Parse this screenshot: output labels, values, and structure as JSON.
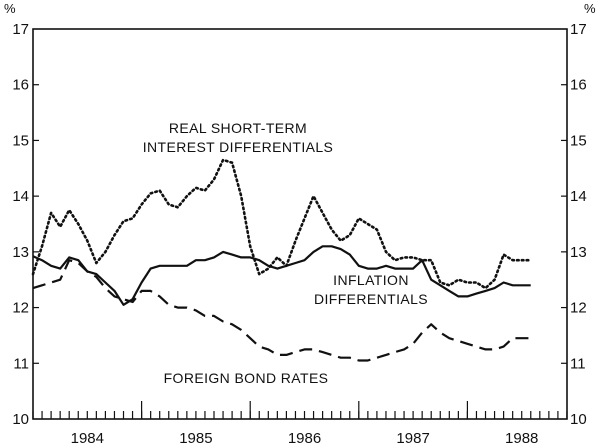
{
  "chart_data": {
    "type": "line",
    "title": "",
    "xlabel": "",
    "ylabel": "%",
    "ylabel_right": "%",
    "ylim": [
      10,
      17
    ],
    "yticks": [
      10,
      11,
      12,
      13,
      14,
      15,
      16,
      17
    ],
    "xlim": [
      1983.5,
      1988.417
    ],
    "xticks": [
      {
        "label": "1984",
        "value": 1984.0
      },
      {
        "label": "1985",
        "value": 1985.0
      },
      {
        "label": "1986",
        "value": 1986.0
      },
      {
        "label": "1987",
        "value": 1987.0
      },
      {
        "label": "1988",
        "value": 1988.0
      }
    ],
    "grid": false,
    "series": [
      {
        "name": "REAL SHORT-TERM INTEREST DIFFERENTIALS",
        "style": "dotted",
        "x": [
          1983.5,
          1983.583,
          1983.667,
          1983.75,
          1983.833,
          1983.917,
          1984.0,
          1984.083,
          1984.167,
          1984.25,
          1984.333,
          1984.417,
          1984.5,
          1984.583,
          1984.667,
          1984.75,
          1984.833,
          1984.917,
          1985.0,
          1985.083,
          1985.167,
          1985.25,
          1985.333,
          1985.417,
          1985.5,
          1985.583,
          1985.667,
          1985.75,
          1985.833,
          1985.917,
          1986.0,
          1986.083,
          1986.167,
          1986.25,
          1986.333,
          1986.417,
          1986.5,
          1986.583,
          1986.667,
          1986.75,
          1986.833,
          1986.917,
          1987.0,
          1987.083,
          1987.167,
          1987.25,
          1987.333,
          1987.417,
          1987.5,
          1987.583,
          1987.667,
          1987.75,
          1987.833,
          1987.917,
          1988.0,
          1988.083
        ],
        "values": [
          12.6,
          13.1,
          13.7,
          13.45,
          13.75,
          13.5,
          13.2,
          12.8,
          13.0,
          13.3,
          13.55,
          13.6,
          13.85,
          14.05,
          14.1,
          13.85,
          13.8,
          14.0,
          14.15,
          14.1,
          14.3,
          14.65,
          14.6,
          14.0,
          13.1,
          12.6,
          12.7,
          12.9,
          12.75,
          13.2,
          13.6,
          14.0,
          13.7,
          13.4,
          13.2,
          13.3,
          13.6,
          13.5,
          13.4,
          13.0,
          12.85,
          12.9,
          12.9,
          12.85,
          12.85,
          12.45,
          12.4,
          12.5,
          12.45,
          12.45,
          12.35,
          12.5,
          12.95,
          12.85,
          12.85,
          12.85
        ]
      },
      {
        "name": "INFLATION DIFFERENTIALS",
        "style": "solid",
        "x": [
          1983.5,
          1983.583,
          1983.667,
          1983.75,
          1983.833,
          1983.917,
          1984.0,
          1984.083,
          1984.167,
          1984.25,
          1984.333,
          1984.417,
          1984.5,
          1984.583,
          1984.667,
          1984.75,
          1984.833,
          1984.917,
          1985.0,
          1985.083,
          1985.167,
          1985.25,
          1985.333,
          1985.417,
          1985.5,
          1985.583,
          1985.667,
          1985.75,
          1985.833,
          1985.917,
          1986.0,
          1986.083,
          1986.167,
          1986.25,
          1986.333,
          1986.417,
          1986.5,
          1986.583,
          1986.667,
          1986.75,
          1986.833,
          1986.917,
          1987.0,
          1987.083,
          1987.167,
          1987.25,
          1987.333,
          1987.417,
          1987.5,
          1987.583,
          1987.667,
          1987.75,
          1987.833,
          1987.917,
          1988.0,
          1988.083
        ],
        "values": [
          12.92,
          12.85,
          12.75,
          12.7,
          12.9,
          12.85,
          12.65,
          12.6,
          12.45,
          12.3,
          12.05,
          12.15,
          12.45,
          12.7,
          12.75,
          12.75,
          12.75,
          12.75,
          12.85,
          12.85,
          12.9,
          13.0,
          12.95,
          12.9,
          12.9,
          12.85,
          12.75,
          12.7,
          12.75,
          12.8,
          12.85,
          13.0,
          13.1,
          13.1,
          13.05,
          12.95,
          12.75,
          12.7,
          12.7,
          12.75,
          12.7,
          12.7,
          12.7,
          12.85,
          12.5,
          12.4,
          12.3,
          12.2,
          12.2,
          12.25,
          12.3,
          12.35,
          12.45,
          12.4,
          12.4,
          12.4
        ]
      },
      {
        "name": "FOREIGN BOND RATES",
        "style": "dashed",
        "x": [
          1983.5,
          1983.583,
          1983.667,
          1983.75,
          1983.833,
          1983.917,
          1984.0,
          1984.083,
          1984.167,
          1984.25,
          1984.333,
          1984.417,
          1984.5,
          1984.583,
          1984.667,
          1984.75,
          1984.833,
          1984.917,
          1985.0,
          1985.083,
          1985.167,
          1985.25,
          1985.333,
          1985.417,
          1985.5,
          1985.583,
          1985.667,
          1985.75,
          1985.833,
          1985.917,
          1986.0,
          1986.083,
          1986.167,
          1986.25,
          1986.333,
          1986.417,
          1986.5,
          1986.583,
          1986.667,
          1986.75,
          1986.833,
          1986.917,
          1987.0,
          1987.083,
          1987.167,
          1987.25,
          1987.333,
          1987.417,
          1987.5,
          1987.583,
          1987.667,
          1987.75,
          1987.833,
          1987.917,
          1988.0,
          1988.083
        ],
        "values": [
          12.35,
          12.4,
          12.45,
          12.5,
          12.85,
          12.8,
          12.65,
          12.55,
          12.35,
          12.2,
          12.15,
          12.1,
          12.3,
          12.3,
          12.2,
          12.05,
          12.0,
          12.0,
          11.95,
          11.85,
          11.85,
          11.75,
          11.7,
          11.6,
          11.45,
          11.3,
          11.25,
          11.15,
          11.15,
          11.2,
          11.25,
          11.25,
          11.2,
          11.15,
          11.1,
          11.1,
          11.05,
          11.05,
          11.1,
          11.15,
          11.2,
          11.25,
          11.35,
          11.55,
          11.7,
          11.55,
          11.45,
          11.4,
          11.35,
          11.3,
          11.25,
          11.25,
          11.3,
          11.45,
          11.45,
          11.45
        ]
      }
    ],
    "annotations": [
      {
        "lines": [
          "REAL SHORT-TERM",
          "INTEREST DIFFERENTIALS"
        ],
        "series": "REAL SHORT-TERM INTEREST DIFFERENTIALS"
      },
      {
        "lines": [
          "INFLATION",
          "DIFFERENTIALS"
        ],
        "series": "INFLATION DIFFERENTIALS"
      },
      {
        "lines": [
          "FOREIGN BOND RATES"
        ],
        "series": "FOREIGN BOND RATES"
      }
    ]
  }
}
